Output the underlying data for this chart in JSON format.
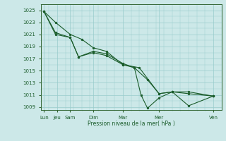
{
  "bg_color": "#cce8e8",
  "grid_color": "#99cccc",
  "line_color": "#1a5c2a",
  "marker_color": "#1a5c2a",
  "axis_color": "#336633",
  "text_color": "#1a5c2a",
  "xlabel_text": "Pression niveau de la mer( hPa )",
  "ylim": [
    1008.5,
    1026.0
  ],
  "xlim": [
    0,
    11.0
  ],
  "yticks": [
    1009,
    1011,
    1013,
    1015,
    1017,
    1019,
    1021,
    1023,
    1025
  ],
  "xtick_positions": [
    0.2,
    1.0,
    1.8,
    3.2,
    5.0,
    7.2,
    10.5
  ],
  "xtick_labels": [
    "Lun",
    "Jeu",
    "Sam",
    "Dim",
    "Mar",
    "Mer",
    "Ven"
  ],
  "series1_x": [
    0.2,
    0.9,
    1.8,
    2.5,
    3.2,
    4.0,
    5.0,
    6.0,
    7.2,
    8.0,
    9.0,
    10.5
  ],
  "series1_y": [
    1024.8,
    1023.0,
    1021.0,
    1020.2,
    1018.8,
    1018.2,
    1016.0,
    1015.5,
    1011.2,
    1011.5,
    1011.2,
    1010.8
  ],
  "series2_x": [
    0.2,
    0.9,
    1.8,
    2.3,
    3.2,
    4.0,
    5.0,
    5.7,
    6.5,
    7.2,
    8.0,
    9.0,
    10.5
  ],
  "series2_y": [
    1024.8,
    1021.0,
    1020.5,
    1017.3,
    1018.0,
    1017.5,
    1016.0,
    1015.5,
    1013.5,
    1011.2,
    1011.5,
    1011.5,
    1010.8
  ],
  "series3_x": [
    0.2,
    0.9,
    1.8,
    2.3,
    3.2,
    4.0,
    5.0,
    5.7,
    6.1,
    6.5,
    7.2,
    8.0,
    9.0,
    10.5
  ],
  "series3_y": [
    1024.8,
    1021.3,
    1020.5,
    1017.3,
    1018.2,
    1017.8,
    1016.2,
    1015.5,
    1011.0,
    1008.8,
    1010.5,
    1011.5,
    1009.2,
    1010.8
  ]
}
